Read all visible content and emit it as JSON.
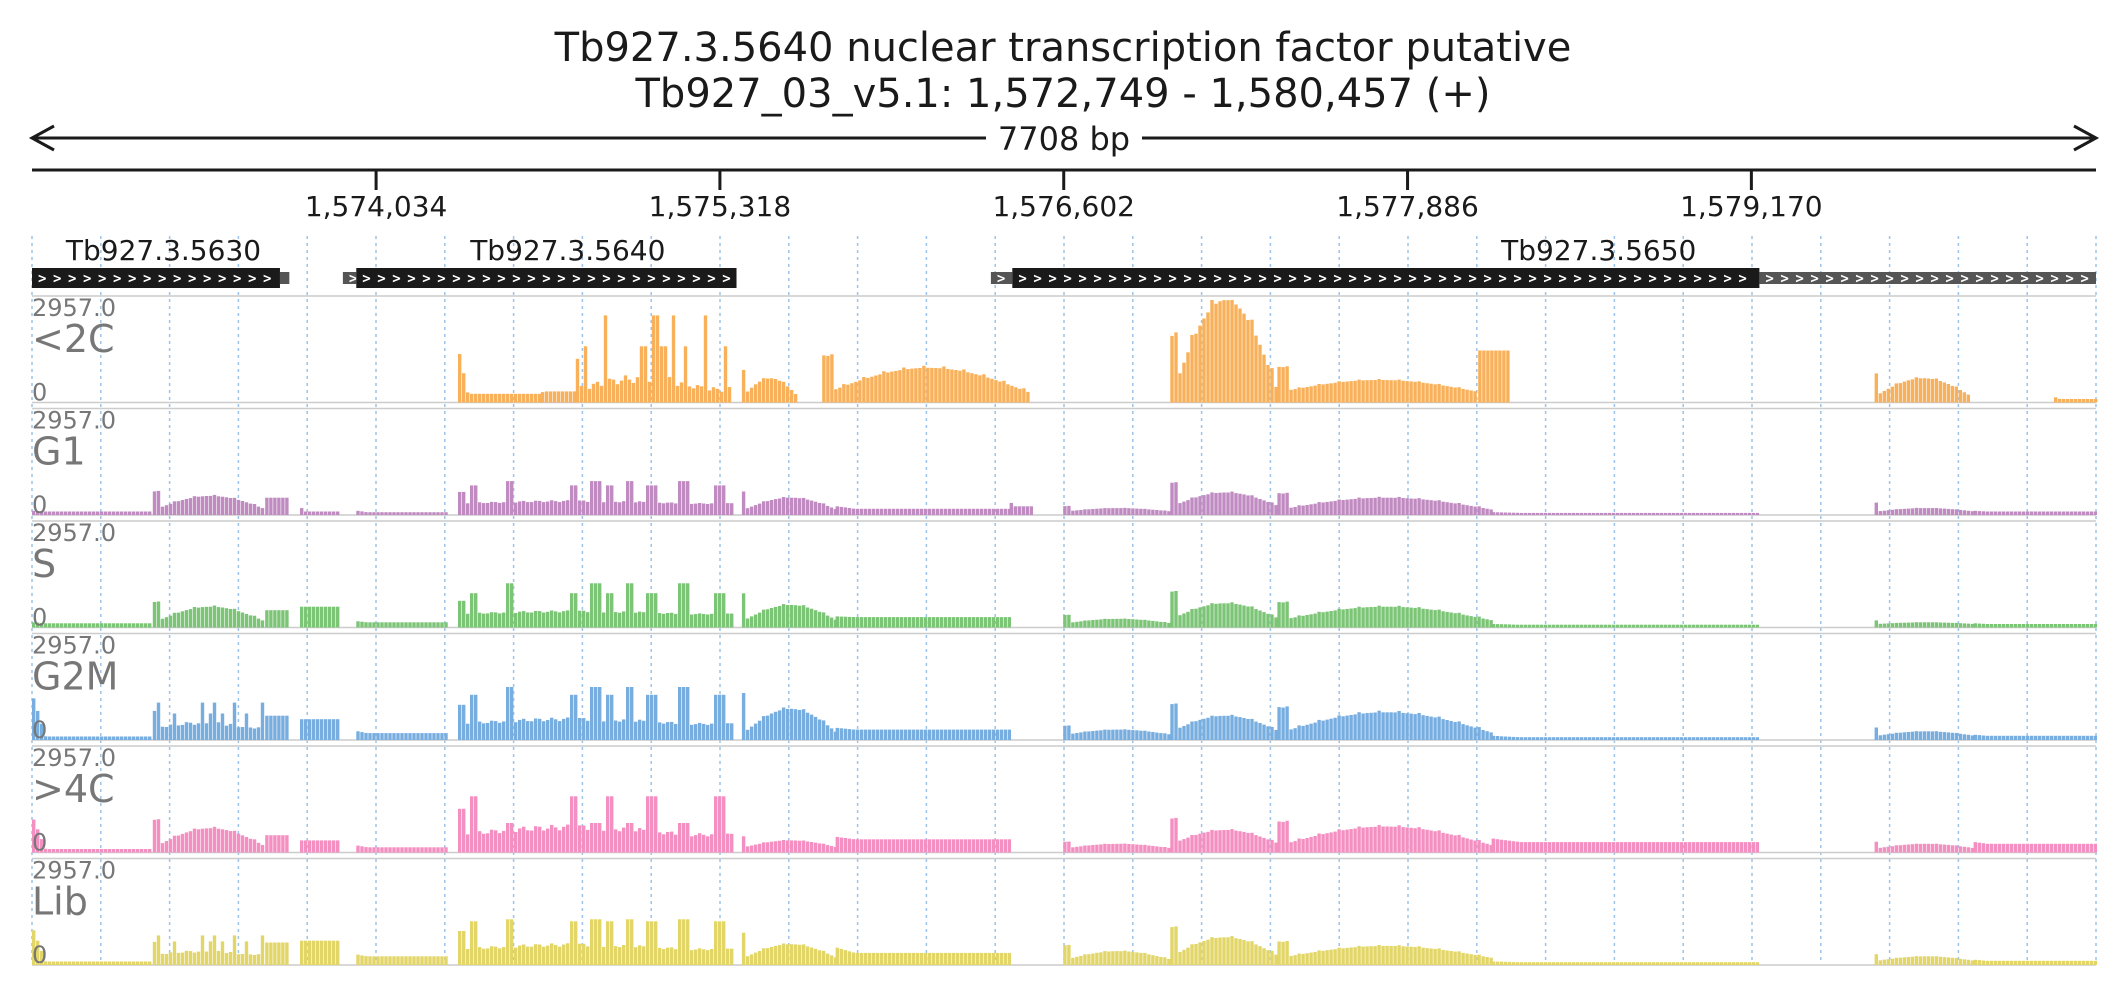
{
  "title": {
    "line1": "Tb927.3.5640  nuclear transcription factor  putative",
    "line2": "Tb927_03_v5.1: 1,572,749 - 1,580,457 (+)"
  },
  "chart_data": {
    "type": "area",
    "region": {
      "chrom": "Tb927_03_v5.1",
      "start": 1572749,
      "end": 1580457,
      "strand": "+",
      "span_label": "7708 bp"
    },
    "ticks": [
      {
        "pos": 1574034,
        "label": "1,574,034"
      },
      {
        "pos": 1575318,
        "label": "1,575,318"
      },
      {
        "pos": 1576602,
        "label": "1,576,602"
      },
      {
        "pos": 1577886,
        "label": "1,577,886"
      },
      {
        "pos": 1579170,
        "label": "1,579,170"
      }
    ],
    "genes": [
      {
        "name": "Tb927.3.5630",
        "start": 1572749,
        "end": 1573675,
        "utr_end": 1573710,
        "label_pos": 1573240
      },
      {
        "name": "Tb927.3.5640",
        "start": 1573960,
        "end": 1575380,
        "utr_start": 1573910,
        "label_pos": 1574750
      },
      {
        "name": "Tb927.3.5650",
        "start": 1576410,
        "end": 1579200,
        "utr_start": 1576330,
        "utr_end": 1580457,
        "label_pos": 1578600
      }
    ],
    "ylim": [
      0,
      2957.0
    ],
    "tracks": [
      {
        "name": "<2C",
        "max_label": "2957.0",
        "min_label": "0",
        "color": "#F9B05A"
      },
      {
        "name": "G1",
        "max_label": "2957.0",
        "min_label": "0",
        "color": "#C08BC1"
      },
      {
        "name": "S",
        "max_label": "2957.0",
        "min_label": "0",
        "color": "#7CC576"
      },
      {
        "name": "G2M",
        "max_label": "2957.0",
        "min_label": "0",
        "color": "#77ADDF"
      },
      {
        "name": ">4C",
        "max_label": "2957.0",
        "min_label": "0",
        "color": "#F48FC1"
      },
      {
        "name": "Lib",
        "max_label": "2957.0",
        "min_label": "0",
        "color": "#E3D668"
      }
    ],
    "coverage_profiles": {
      "<2C": [
        [
          1574340,
          1574650,
          1400,
          250,
          220,
          "flat"
        ],
        [
          1574650,
          1574780,
          300,
          320,
          0,
          "flat"
        ],
        [
          1574780,
          1575360,
          1800,
          2957,
          0,
          "spiky"
        ],
        [
          1575400,
          1575600,
          900,
          700,
          200,
          "arch"
        ],
        [
          1575700,
          1576480,
          1300,
          1000,
          250,
          "arch"
        ],
        [
          1577000,
          1577400,
          1700,
          2957,
          200,
          "arch"
        ],
        [
          1577400,
          1578150,
          1000,
          650,
          300,
          "arch"
        ],
        [
          1578150,
          1578270,
          1500,
          0,
          0,
          "flat"
        ],
        [
          1579630,
          1579980,
          800,
          700,
          200,
          "arch"
        ],
        [
          1580300,
          1580457,
          150,
          100,
          0,
          "flat"
        ]
      ],
      "G1": [
        [
          1572749,
          1573200,
          120,
          100,
          0,
          "flat"
        ],
        [
          1573200,
          1573620,
          650,
          550,
          150,
          "arch"
        ],
        [
          1573620,
          1573710,
          500,
          0,
          0,
          "flat"
        ],
        [
          1573750,
          1573900,
          200,
          100,
          0,
          "flat"
        ],
        [
          1573960,
          1574300,
          120,
          80,
          0,
          "flat"
        ],
        [
          1574340,
          1575360,
          950,
          1150,
          250,
          "spiky"
        ],
        [
          1575400,
          1575750,
          650,
          500,
          150,
          "arch"
        ],
        [
          1575750,
          1576400,
          250,
          180,
          100,
          "flat"
        ],
        [
          1576400,
          1576480,
          350,
          250,
          0,
          "flat"
        ],
        [
          1576600,
          1577000,
          250,
          200,
          100,
          "arch"
        ],
        [
          1577000,
          1577400,
          900,
          650,
          250,
          "arch"
        ],
        [
          1577400,
          1578200,
          600,
          500,
          150,
          "arch"
        ],
        [
          1578200,
          1579200,
          80,
          60,
          0,
          "flat"
        ],
        [
          1579630,
          1580000,
          350,
          200,
          100,
          "arch"
        ],
        [
          1580000,
          1580457,
          120,
          100,
          0,
          "flat"
        ]
      ],
      "S": [
        [
          1572749,
          1573200,
          150,
          120,
          0,
          "flat"
        ],
        [
          1573200,
          1573620,
          700,
          600,
          150,
          "arch"
        ],
        [
          1573620,
          1573710,
          500,
          0,
          0,
          "flat"
        ],
        [
          1573750,
          1573900,
          600,
          0,
          0,
          "flat"
        ],
        [
          1573960,
          1574300,
          180,
          150,
          0,
          "flat"
        ],
        [
          1574340,
          1575360,
          1100,
          1500,
          300,
          "spiky"
        ],
        [
          1575400,
          1575750,
          950,
          650,
          200,
          "arch"
        ],
        [
          1575750,
          1576400,
          320,
          300,
          150,
          "flat"
        ],
        [
          1576600,
          1577000,
          350,
          250,
          120,
          "arch"
        ],
        [
          1577000,
          1577400,
          1000,
          700,
          250,
          "arch"
        ],
        [
          1577400,
          1578200,
          700,
          600,
          200,
          "arch"
        ],
        [
          1578200,
          1579200,
          100,
          80,
          0,
          "flat"
        ],
        [
          1579630,
          1580000,
          200,
          150,
          100,
          "arch"
        ],
        [
          1580000,
          1580457,
          120,
          100,
          0,
          "flat"
        ]
      ],
      "G2M": [
        [
          1572749,
          1573200,
          1200,
          100,
          0,
          "flat"
        ],
        [
          1573200,
          1573620,
          1200,
          900,
          200,
          "spiky"
        ],
        [
          1573620,
          1573710,
          700,
          0,
          0,
          "flat"
        ],
        [
          1573750,
          1573900,
          600,
          0,
          0,
          "flat"
        ],
        [
          1573960,
          1574300,
          250,
          200,
          0,
          "flat"
        ],
        [
          1574340,
          1575360,
          1450,
          1800,
          300,
          "spiky"
        ],
        [
          1575400,
          1575750,
          1300,
          900,
          200,
          "arch"
        ],
        [
          1575750,
          1576400,
          350,
          300,
          150,
          "flat"
        ],
        [
          1576600,
          1577000,
          400,
          300,
          150,
          "arch"
        ],
        [
          1577000,
          1577400,
          1000,
          700,
          250,
          "arch"
        ],
        [
          1577400,
          1578200,
          900,
          800,
          200,
          "arch"
        ],
        [
          1578200,
          1579200,
          120,
          80,
          0,
          "flat"
        ],
        [
          1579630,
          1580000,
          350,
          250,
          120,
          "arch"
        ],
        [
          1580000,
          1580457,
          150,
          120,
          0,
          "flat"
        ]
      ],
      "<4C": [],
      ">4C": [
        [
          1572749,
          1573200,
          950,
          100,
          0,
          "flat"
        ],
        [
          1573200,
          1573620,
          900,
          700,
          150,
          "arch"
        ],
        [
          1573620,
          1573710,
          500,
          0,
          0,
          "flat"
        ],
        [
          1573750,
          1573900,
          350,
          0,
          0,
          "flat"
        ],
        [
          1573960,
          1574300,
          200,
          150,
          0,
          "flat"
        ],
        [
          1574340,
          1575360,
          1800,
          1000,
          250,
          "spiky"
        ],
        [
          1575400,
          1575750,
          450,
          350,
          150,
          "arch"
        ],
        [
          1575750,
          1576400,
          450,
          380,
          150,
          "flat"
        ],
        [
          1576600,
          1577000,
          300,
          250,
          120,
          "arch"
        ],
        [
          1577000,
          1577400,
          950,
          650,
          250,
          "arch"
        ],
        [
          1577400,
          1578200,
          850,
          750,
          200,
          "arch"
        ],
        [
          1578200,
          1579200,
          400,
          300,
          150,
          "flat"
        ],
        [
          1579630,
          1580000,
          300,
          250,
          120,
          "arch"
        ],
        [
          1580000,
          1580457,
          300,
          250,
          0,
          "flat"
        ]
      ],
      "Lib": [
        [
          1572749,
          1573200,
          1000,
          100,
          0,
          "flat"
        ],
        [
          1573200,
          1573620,
          950,
          800,
          200,
          "spiky"
        ],
        [
          1573620,
          1573710,
          650,
          0,
          0,
          "flat"
        ],
        [
          1573750,
          1573900,
          700,
          0,
          0,
          "flat"
        ],
        [
          1573960,
          1574300,
          300,
          250,
          0,
          "flat"
        ],
        [
          1574340,
          1575360,
          1400,
          1550,
          300,
          "spiky"
        ],
        [
          1575400,
          1575750,
          900,
          600,
          200,
          "arch"
        ],
        [
          1575750,
          1576400,
          500,
          350,
          150,
          "flat"
        ],
        [
          1576600,
          1577000,
          550,
          400,
          150,
          "arch"
        ],
        [
          1577000,
          1577400,
          1050,
          800,
          250,
          "arch"
        ],
        [
          1577400,
          1578200,
          650,
          550,
          200,
          "arch"
        ],
        [
          1578200,
          1579200,
          100,
          80,
          0,
          "flat"
        ],
        [
          1579630,
          1580000,
          300,
          250,
          120,
          "arch"
        ],
        [
          1580000,
          1580457,
          150,
          120,
          0,
          "flat"
        ]
      ]
    }
  }
}
